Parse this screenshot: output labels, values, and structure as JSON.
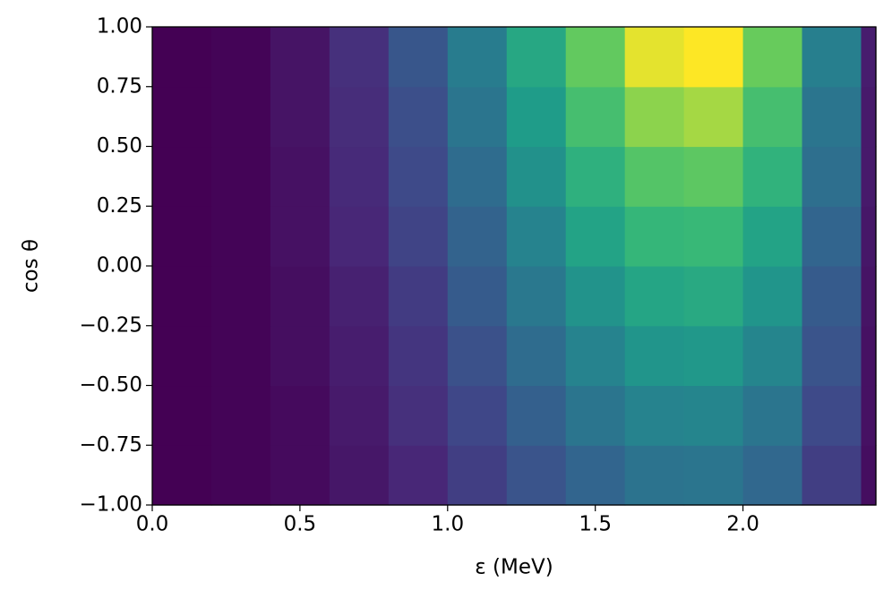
{
  "chart_data": {
    "type": "contourf",
    "xlabel": "ε (MeV)",
    "ylabel": "cos θ",
    "colormap": "viridis",
    "xbins": [
      0,
      0.2,
      0.4,
      0.6,
      0.8,
      1.0,
      1.2,
      1.4,
      1.6,
      1.8,
      2.0,
      2.2,
      2.4,
      2.45
    ],
    "ybins": [
      -1,
      -0.75,
      -0.5,
      -0.25,
      0,
      0.25,
      0.5,
      0.75,
      1
    ],
    "z": [
      [
        0.0,
        0.01,
        0.03,
        0.07,
        0.12,
        0.2,
        0.28,
        0.35,
        0.41,
        0.42,
        0.36,
        0.2,
        0.04
      ],
      [
        0.0,
        0.01,
        0.03,
        0.08,
        0.15,
        0.23,
        0.33,
        0.42,
        0.48,
        0.49,
        0.42,
        0.24,
        0.05
      ],
      [
        0.0,
        0.01,
        0.04,
        0.09,
        0.17,
        0.27,
        0.38,
        0.48,
        0.56,
        0.57,
        0.49,
        0.28,
        0.05
      ],
      [
        0.0,
        0.01,
        0.04,
        0.1,
        0.19,
        0.31,
        0.43,
        0.55,
        0.63,
        0.65,
        0.56,
        0.31,
        0.06
      ],
      [
        0.0,
        0.01,
        0.05,
        0.12,
        0.22,
        0.34,
        0.48,
        0.62,
        0.71,
        0.72,
        0.62,
        0.35,
        0.07
      ],
      [
        0.0,
        0.01,
        0.05,
        0.13,
        0.24,
        0.38,
        0.54,
        0.68,
        0.78,
        0.8,
        0.69,
        0.39,
        0.08
      ],
      [
        0.0,
        0.01,
        0.06,
        0.14,
        0.26,
        0.42,
        0.59,
        0.75,
        0.86,
        0.88,
        0.75,
        0.42,
        0.08
      ],
      [
        0.0,
        0.01,
        0.06,
        0.15,
        0.29,
        0.45,
        0.64,
        0.81,
        0.93,
        0.95,
        0.82,
        0.46,
        0.09
      ]
    ],
    "xlim": [
      0,
      2.45
    ],
    "ylim": [
      -1,
      1
    ],
    "xticks": [
      {
        "value": 0,
        "label": "0.0"
      },
      {
        "value": 0.5,
        "label": "0.5"
      },
      {
        "value": 1,
        "label": "1.0"
      },
      {
        "value": 1.5,
        "label": "1.5"
      },
      {
        "value": 2,
        "label": "2.0"
      }
    ],
    "yticks": [
      {
        "value": -1,
        "label": "−1.00"
      },
      {
        "value": -0.75,
        "label": "−0.75"
      },
      {
        "value": -0.5,
        "label": "−0.50"
      },
      {
        "value": -0.25,
        "label": "−0.25"
      },
      {
        "value": 0,
        "label": "0.00"
      },
      {
        "value": 0.25,
        "label": "0.25"
      },
      {
        "value": 0.5,
        "label": "0.50"
      },
      {
        "value": 0.75,
        "label": "0.75"
      },
      {
        "value": 1,
        "label": "1.00"
      }
    ]
  }
}
